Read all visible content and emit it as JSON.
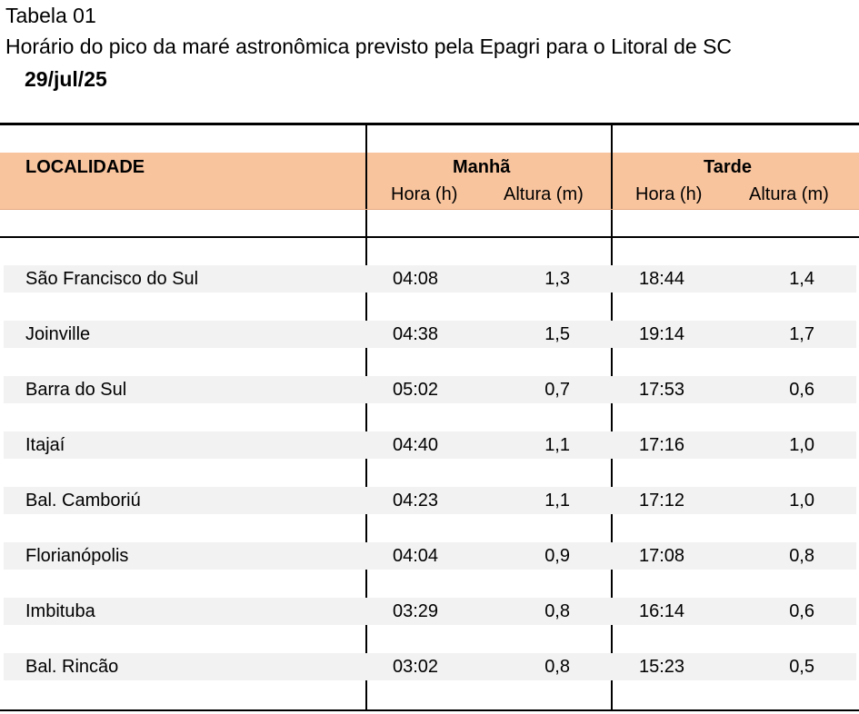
{
  "header": {
    "table_label": "Tabela 01",
    "subtitle": "Horário do pico da maré astronômica previsto pela Epagri para o Litoral de SC",
    "date": "29/jul/25"
  },
  "columns": {
    "locality": "LOCALIDADE",
    "morning": "Manhã",
    "afternoon": "Tarde",
    "hour": "Hora (h)",
    "height": "Altura (m)"
  },
  "rows": [
    {
      "name": "São Francisco do Sul",
      "m_hora": "04:08",
      "m_alt": "1,3",
      "t_hora": "18:44",
      "t_alt": "1,4"
    },
    {
      "name": "Joinville",
      "m_hora": "04:38",
      "m_alt": "1,5",
      "t_hora": "19:14",
      "t_alt": "1,7"
    },
    {
      "name": "Barra do Sul",
      "m_hora": "05:02",
      "m_alt": "0,7",
      "t_hora": "17:53",
      "t_alt": "0,6"
    },
    {
      "name": "Itajaí",
      "m_hora": "04:40",
      "m_alt": "1,1",
      "t_hora": "17:16",
      "t_alt": "1,0"
    },
    {
      "name": "Bal. Camboriú",
      "m_hora": "04:23",
      "m_alt": "1,1",
      "t_hora": "17:12",
      "t_alt": "1,0"
    },
    {
      "name": "Florianópolis",
      "m_hora": "04:04",
      "m_alt": "0,9",
      "t_hora": "17:08",
      "t_alt": "0,8"
    },
    {
      "name": "Imbituba",
      "m_hora": "03:29",
      "m_alt": "0,8",
      "t_hora": "16:14",
      "t_alt": "0,6"
    },
    {
      "name": "Bal. Rincão",
      "m_hora": "03:02",
      "m_alt": "0,8",
      "t_hora": "15:23",
      "t_alt": "0,5"
    }
  ]
}
